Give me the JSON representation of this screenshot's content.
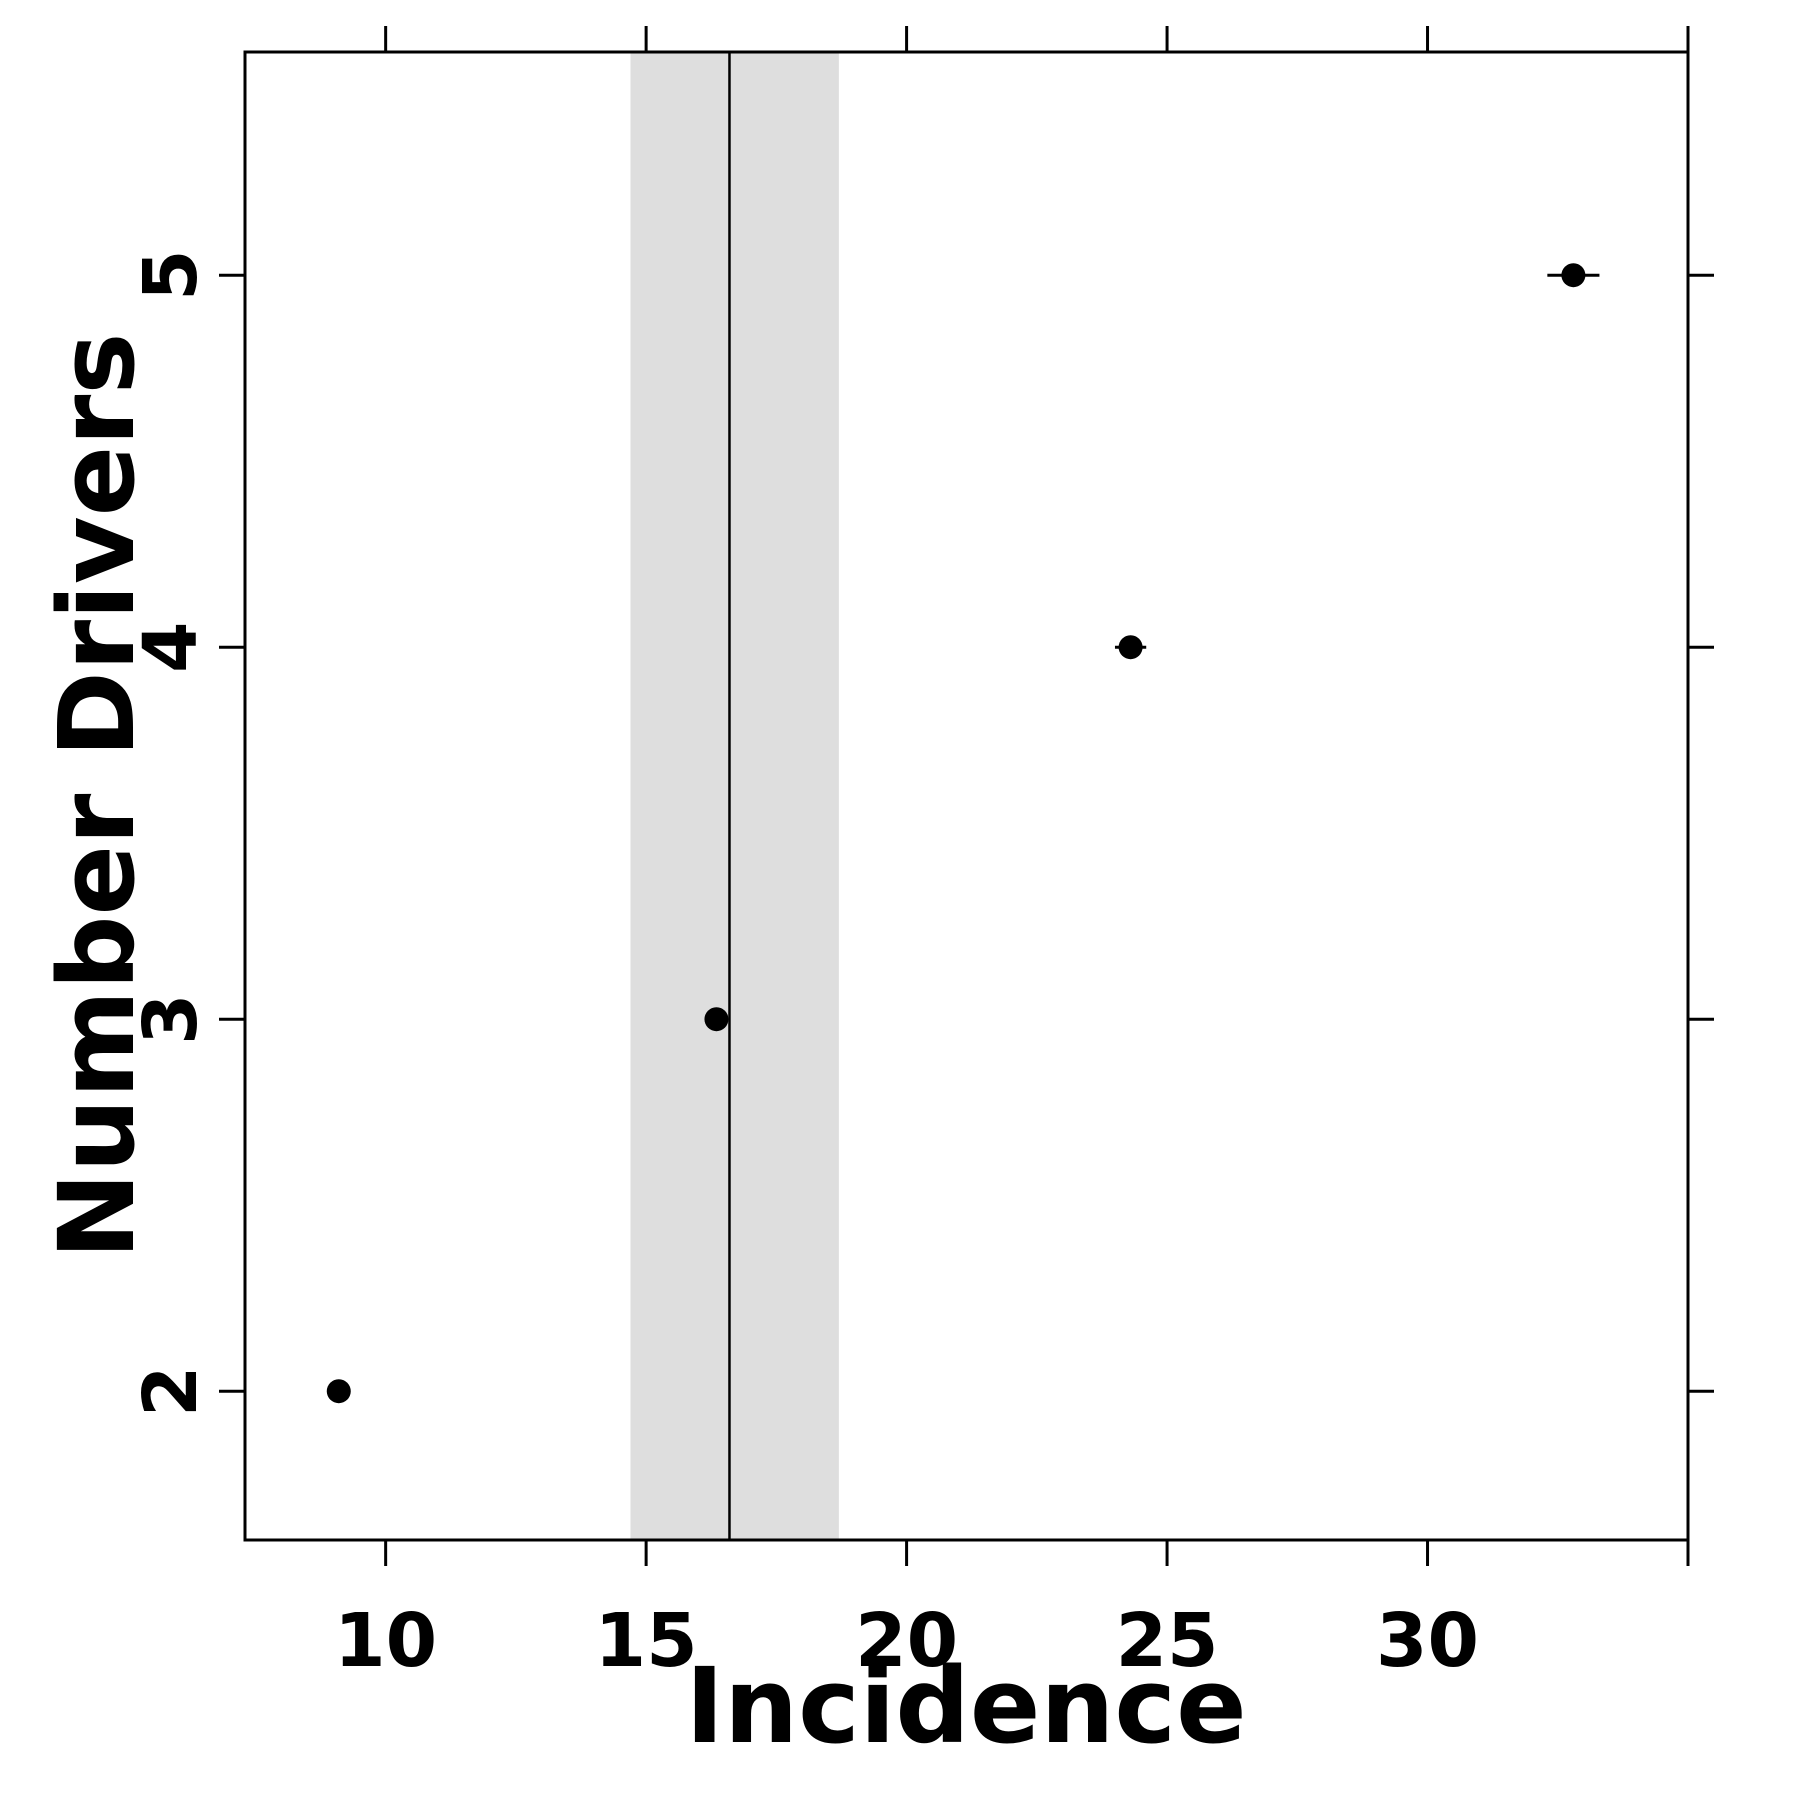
{
  "chart_data": {
    "type": "scatter",
    "xlabel": "Incidence",
    "ylabel": "Number Drivers",
    "xlim": [
      7.3,
      35.0
    ],
    "ylim": [
      1.6,
      5.6
    ],
    "x_ticks": [
      10,
      15,
      20,
      25,
      30,
      35
    ],
    "x_tick_labels": [
      "10",
      "15",
      "20",
      "25",
      "30",
      ""
    ],
    "y_ticks": [
      2,
      3,
      4,
      5
    ],
    "y_tick_labels": [
      "2",
      "3",
      "4",
      "5"
    ],
    "grid": false,
    "points": [
      {
        "y": 2,
        "x": 9.1,
        "lo": 9.0,
        "hi": 9.2
      },
      {
        "y": 3,
        "x": 16.35,
        "lo": 16.2,
        "hi": 16.5
      },
      {
        "y": 4,
        "x": 24.3,
        "lo": 24.0,
        "hi": 24.6
      },
      {
        "y": 5,
        "x": 32.8,
        "lo": 32.3,
        "hi": 33.3
      }
    ],
    "reference_line": {
      "x": 16.6
    },
    "reference_band": {
      "lo": 14.7,
      "hi": 18.7
    },
    "colors": {
      "points": "#000000",
      "band": "#dedede",
      "line": "#000000"
    }
  }
}
